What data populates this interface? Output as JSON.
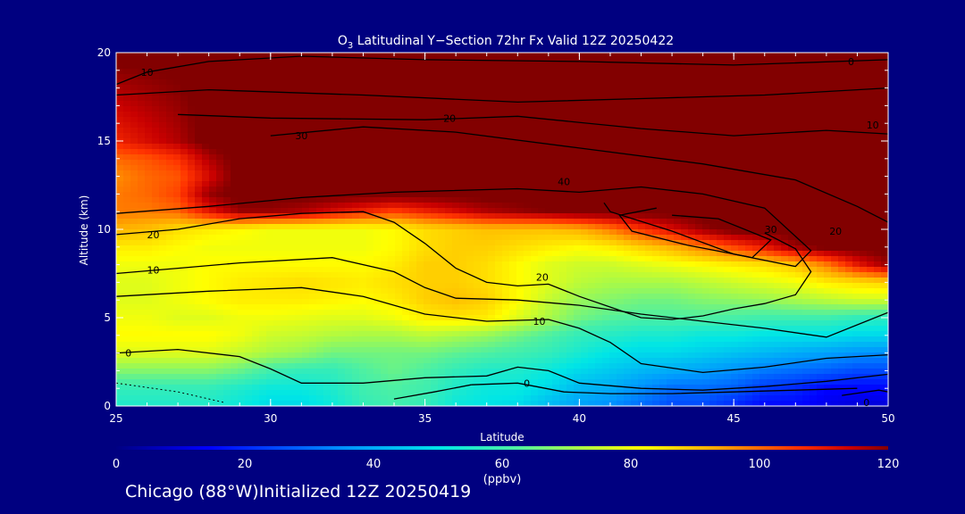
{
  "chart_data": {
    "type": "heatmap",
    "title_prefix": "O",
    "title_sub": "3",
    "title_rest": " Latitudinal Y−Section 72hr  Fx Valid 12Z 20250422",
    "xlabel": "Latitude",
    "ylabel": "Altitude (km)",
    "xlim": [
      25,
      50
    ],
    "ylim": [
      0,
      20
    ],
    "x_ticks": [
      "25",
      "30",
      "35",
      "40",
      "45",
      "50"
    ],
    "y_ticks": [
      "0",
      "5",
      "10",
      "15",
      "20"
    ],
    "colorbar": {
      "label": "(ppbv)",
      "range": [
        0,
        120
      ],
      "ticks": [
        "0",
        "20",
        "40",
        "60",
        "80",
        "100",
        "120"
      ]
    },
    "rows": [
      {
        "alt": 0,
        "values": [
          55,
          55,
          55,
          55,
          52,
          48,
          48,
          52,
          58,
          60,
          58,
          52,
          50,
          48,
          42,
          38,
          35,
          30,
          25,
          25,
          20,
          15,
          15,
          12,
          10,
          10
        ]
      },
      {
        "alt": 1,
        "values": [
          58,
          58,
          58,
          58,
          55,
          52,
          52,
          55,
          60,
          62,
          60,
          55,
          52,
          52,
          48,
          42,
          40,
          35,
          30,
          30,
          28,
          22,
          20,
          15,
          15,
          15
        ]
      },
      {
        "alt": 2,
        "values": [
          68,
          68,
          68,
          68,
          65,
          60,
          58,
          58,
          62,
          65,
          62,
          58,
          55,
          55,
          52,
          48,
          45,
          42,
          40,
          38,
          35,
          32,
          30,
          28,
          25,
          25
        ]
      },
      {
        "alt": 3,
        "values": [
          78,
          78,
          78,
          78,
          75,
          72,
          70,
          66,
          66,
          66,
          66,
          64,
          62,
          60,
          58,
          54,
          50,
          48,
          48,
          46,
          44,
          42,
          40,
          38,
          36,
          35
        ]
      },
      {
        "alt": 4,
        "values": [
          82,
          82,
          82,
          82,
          80,
          76,
          75,
          73,
          72,
          72,
          74,
          72,
          70,
          66,
          62,
          58,
          56,
          54,
          54,
          52,
          52,
          50,
          50,
          50,
          48,
          48
        ]
      },
      {
        "alt": 5,
        "values": [
          80,
          80,
          78,
          78,
          80,
          80,
          79,
          78,
          78,
          80,
          84,
          85,
          84,
          78,
          72,
          66,
          63,
          62,
          62,
          62,
          61,
          60,
          60,
          60,
          58,
          57
        ]
      },
      {
        "alt": 6,
        "values": [
          78,
          78,
          80,
          82,
          84,
          84,
          84,
          83,
          82,
          84,
          88,
          90,
          88,
          82,
          75,
          70,
          68,
          66,
          66,
          68,
          69,
          70,
          72,
          74,
          76,
          76
        ]
      },
      {
        "alt": 7,
        "values": [
          78,
          78,
          80,
          82,
          84,
          85,
          86,
          85,
          84,
          86,
          88,
          88,
          86,
          82,
          78,
          74,
          72,
          72,
          72,
          74,
          76,
          78,
          80,
          84,
          86,
          88
        ]
      },
      {
        "alt": 8,
        "values": [
          80,
          80,
          80,
          82,
          82,
          82,
          82,
          82,
          82,
          84,
          88,
          88,
          86,
          82,
          78,
          76,
          76,
          78,
          80,
          82,
          84,
          86,
          90,
          98,
          110,
          118
        ]
      },
      {
        "alt": 9,
        "values": [
          84,
          84,
          82,
          80,
          80,
          80,
          80,
          80,
          80,
          82,
          86,
          88,
          88,
          86,
          84,
          82,
          84,
          88,
          92,
          98,
          104,
          110,
          118,
          122,
          122,
          122
        ]
      },
      {
        "alt": 10,
        "values": [
          92,
          90,
          86,
          84,
          82,
          80,
          80,
          80,
          80,
          82,
          86,
          88,
          90,
          90,
          90,
          92,
          98,
          106,
          112,
          118,
          122,
          122,
          122,
          122,
          122,
          122
        ]
      },
      {
        "alt": 11,
        "values": [
          98,
          98,
          100,
          110,
          118,
          118,
          116,
          112,
          108,
          104,
          108,
          112,
          116,
          118,
          120,
          122,
          122,
          122,
          122,
          122,
          122,
          122,
          122,
          122,
          122,
          122
        ]
      },
      {
        "alt": 12,
        "values": [
          98,
          100,
          104,
          118,
          122,
          122,
          122,
          122,
          122,
          122,
          122,
          122,
          122,
          122,
          122,
          122,
          122,
          122,
          122,
          122,
          122,
          122,
          122,
          122,
          122,
          122
        ]
      },
      {
        "alt": 13,
        "values": [
          96,
          100,
          102,
          112,
          122,
          122,
          122,
          122,
          122,
          122,
          122,
          122,
          122,
          122,
          122,
          122,
          122,
          122,
          122,
          122,
          122,
          122,
          122,
          122,
          122,
          122
        ]
      },
      {
        "alt": 14,
        "values": [
          100,
          102,
          106,
          116,
          122,
          122,
          122,
          122,
          122,
          122,
          122,
          122,
          122,
          122,
          122,
          122,
          122,
          122,
          122,
          122,
          122,
          122,
          122,
          122,
          122,
          122
        ]
      },
      {
        "alt": 15,
        "values": [
          108,
          112,
          116,
          122,
          122,
          122,
          122,
          122,
          122,
          122,
          122,
          122,
          122,
          122,
          122,
          122,
          122,
          122,
          122,
          122,
          122,
          122,
          122,
          122,
          122,
          122
        ]
      },
      {
        "alt": 20,
        "values": [
          122,
          122,
          122,
          122,
          122,
          122,
          122,
          122,
          122,
          122,
          122,
          122,
          122,
          122,
          122,
          122,
          122,
          122,
          122,
          122,
          122,
          122,
          122,
          122,
          122,
          122
        ]
      }
    ],
    "contour_labels": [
      {
        "lat": 26.0,
        "alt": 18.9,
        "text": "10"
      },
      {
        "lat": 31.0,
        "alt": 15.3,
        "text": "30"
      },
      {
        "lat": 35.8,
        "alt": 16.3,
        "text": "20"
      },
      {
        "lat": 48.8,
        "alt": 19.5,
        "text": "0"
      },
      {
        "lat": 49.5,
        "alt": 15.9,
        "text": "10"
      },
      {
        "lat": 39.5,
        "alt": 12.7,
        "text": "40"
      },
      {
        "lat": 26.2,
        "alt": 9.7,
        "text": "20"
      },
      {
        "lat": 46.2,
        "alt": 10.0,
        "text": "30"
      },
      {
        "lat": 48.3,
        "alt": 9.9,
        "text": "20"
      },
      {
        "lat": 26.2,
        "alt": 7.7,
        "text": "10"
      },
      {
        "lat": 38.8,
        "alt": 7.3,
        "text": "20"
      },
      {
        "lat": 38.7,
        "alt": 4.8,
        "text": "10"
      },
      {
        "lat": 25.4,
        "alt": 3.0,
        "text": "0"
      },
      {
        "lat": 38.3,
        "alt": 1.3,
        "text": "0"
      },
      {
        "lat": 49.3,
        "alt": 0.2,
        "text": "0"
      }
    ]
  },
  "footer": "Chicago (88°W)Initialized 12Z 20250419"
}
